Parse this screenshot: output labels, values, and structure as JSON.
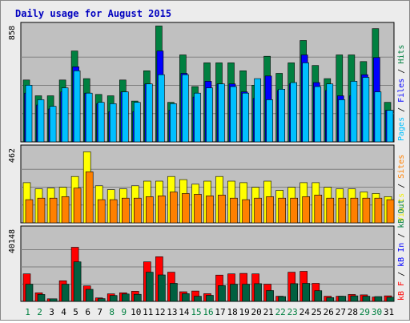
{
  "chart_data": {
    "type": "bar",
    "title": "Daily usage for August 2015",
    "categories": [
      "1",
      "2",
      "3",
      "4",
      "5",
      "6",
      "7",
      "8",
      "9",
      "10",
      "11",
      "12",
      "13",
      "14",
      "15",
      "16",
      "17",
      "18",
      "19",
      "20",
      "21",
      "22",
      "23",
      "24",
      "25",
      "26",
      "27",
      "28",
      "29",
      "30",
      "31"
    ],
    "weekend_days": [
      "1",
      "2",
      "8",
      "9",
      "15",
      "16",
      "22",
      "23",
      "29",
      "30"
    ],
    "panels": [
      {
        "id": "top",
        "max_label": "858",
        "ylim": [
          0,
          858
        ],
        "right_legend": [
          {
            "text": "Pages",
            "color": "#00c0ff"
          },
          {
            "text": " / ",
            "color": "#000000"
          },
          {
            "text": "Files",
            "color": "#0000ff"
          },
          {
            "text": " / ",
            "color": "#000000"
          },
          {
            "text": "Hits",
            "color": "#008040"
          }
        ],
        "series": [
          {
            "name": "Hits",
            "color": "#008040",
            "values": [
              470,
              350,
              350,
              470,
              690,
              480,
              360,
              350,
              470,
              310,
              540,
              880,
              300,
              660,
              420,
              600,
              600,
              600,
              540,
              430,
              650,
              520,
              600,
              770,
              580,
              480,
              660,
              660,
              610,
              860,
              300
            ]
          },
          {
            "name": "Files",
            "color": "#0000ff",
            "values": [
              370,
              280,
              250,
              380,
              570,
              370,
              290,
              230,
              380,
              230,
              440,
              690,
              240,
              520,
              340,
              460,
              440,
              440,
              380,
              330,
              500,
              390,
              440,
              660,
              450,
              390,
              350,
              350,
              510,
              640,
              240
            ]
          },
          {
            "name": "Pages",
            "color": "#00c0ff",
            "values": [
              430,
              320,
              270,
              410,
              540,
              370,
              300,
              290,
              380,
              300,
              440,
              510,
              290,
              510,
              370,
              410,
              440,
              420,
              370,
              480,
              320,
              400,
              450,
              600,
              420,
              440,
              320,
              460,
              490,
              380,
              240
            ]
          }
        ]
      },
      {
        "id": "middle",
        "max_label": "462",
        "ylim": [
          0,
          462
        ],
        "right_legend": [
          {
            "text": "Visits",
            "color": "#f0f000"
          },
          {
            "text": " / ",
            "color": "#000000"
          },
          {
            "text": "Sites",
            "color": "#ff8000"
          }
        ],
        "series": [
          {
            "name": "Visits",
            "color": "#ffff00",
            "values": [
              260,
              220,
              225,
              230,
              300,
              460,
              240,
              215,
              220,
              240,
              270,
              270,
              300,
              280,
              250,
              270,
              300,
              270,
              260,
              230,
              270,
              210,
              230,
              260,
              260,
              230,
              220,
              220,
              200,
              190,
              170
            ]
          },
          {
            "name": "Sites",
            "color": "#ff8000",
            "values": [
              150,
              160,
              160,
              170,
              225,
              330,
              150,
              150,
              160,
              160,
              170,
              175,
              200,
              190,
              185,
              175,
              180,
              160,
              150,
              160,
              170,
              160,
              160,
              170,
              180,
              160,
              160,
              160,
              160,
              160,
              150
            ]
          }
        ]
      },
      {
        "id": "bottom",
        "max_label": "40148",
        "ylim": [
          0,
          40148
        ],
        "right_legend": [
          {
            "text": "kB F",
            "color": "#ff0000"
          },
          {
            "text": " / ",
            "color": "#000000"
          },
          {
            "text": "kB In",
            "color": "#0000ff"
          },
          {
            "text": " / ",
            "color": "#000000"
          },
          {
            "text": "kB Out",
            "color": "#008040"
          }
        ],
        "series": [
          {
            "name": "kB F",
            "color": "#ff0000",
            "values": [
              16000,
              5000,
              1500,
              12000,
              31500,
              9000,
              2000,
              4400,
              5000,
              5900,
              23000,
              26000,
              17000,
              5600,
              6000,
              4500,
              15300,
              16000,
              16300,
              16000,
              10000,
              3000,
              17000,
              17500,
              10500,
              3000,
              3000,
              4000,
              3800,
              2500,
              3200
            ]
          },
          {
            "name": "kB Out",
            "color": "#006040",
            "values": [
              10000,
              4000,
              1500,
              10000,
              23000,
              7000,
              1600,
              3400,
              4300,
              4100,
              17000,
              15400,
              10500,
              4500,
              3000,
              3500,
              9200,
              10000,
              10000,
              10300,
              6300,
              2800,
              10300,
              10500,
              6200,
              2200,
              3000,
              3200,
              3000,
              2800,
              2400
            ]
          }
        ]
      }
    ]
  }
}
